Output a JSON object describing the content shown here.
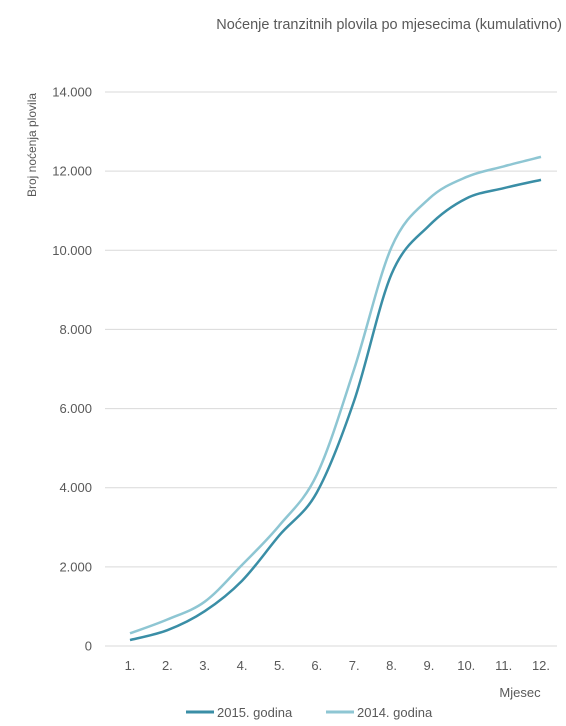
{
  "chart_data": {
    "type": "line",
    "title": "Noćenje tranzitnih plovila po mjesecima (kumulativno)",
    "xlabel": "Mjesec",
    "ylabel": "Broj noćenja plovila",
    "categories": [
      "1.",
      "2.",
      "3.",
      "4.",
      "5.",
      "6.",
      "7.",
      "8.",
      "9.",
      "10.",
      "11.",
      "12."
    ],
    "ylim": [
      0,
      14000
    ],
    "yticks": [
      {
        "value": 0,
        "label": "0"
      },
      {
        "value": 2000,
        "label": "2.000"
      },
      {
        "value": 4000,
        "label": "4.000"
      },
      {
        "value": 6000,
        "label": "6.000"
      },
      {
        "value": 8000,
        "label": "8.000"
      },
      {
        "value": 10000,
        "label": "10.000"
      },
      {
        "value": 12000,
        "label": "12.000"
      },
      {
        "value": 14000,
        "label": "14.000"
      }
    ],
    "grid": true,
    "legend_position": "bottom",
    "series": [
      {
        "name": "2015. godina",
        "color": "#3a8ea6",
        "values": [
          150,
          400,
          880,
          1650,
          2800,
          3880,
          6200,
          9400,
          10620,
          11310,
          11570,
          11780
        ]
      },
      {
        "name": "2014. godina",
        "color": "#8ec6d3",
        "values": [
          320,
          670,
          1120,
          2050,
          3050,
          4330,
          7000,
          10080,
          11300,
          11850,
          12120,
          12360
        ]
      }
    ]
  }
}
